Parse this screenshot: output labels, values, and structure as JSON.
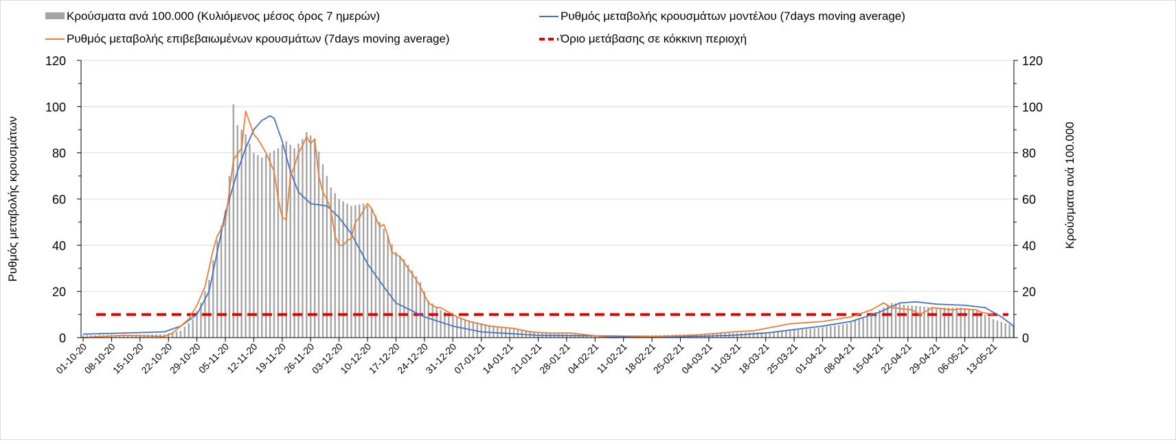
{
  "chart_data": {
    "type": "bar+line",
    "start_date": "01-10-20",
    "legend": [
      {
        "label": "Κρούσματα ανά 100.000 (Κυλιόμενος μέσος όρος 7 ημερών)",
        "kind": "bar",
        "color": "#a5a5a5"
      },
      {
        "label": "Ρυθμός μεταβολής κρουσμάτων μοντέλου (7days moving average)",
        "kind": "line",
        "color": "#4472c4"
      },
      {
        "label": "Ρυθμός μεταβολής επιβεβαιωμένων κρουσμάτων (7days moving average)",
        "kind": "line",
        "color": "#ed7d31"
      },
      {
        "label": "Όριο μετάβασης σε κόκκινη περιοχή",
        "kind": "dashed",
        "color": "#e00000"
      }
    ],
    "legend_position": "top",
    "ylabel_left": "Ρυθμός μεταβολής κρουσμάτων",
    "ylabel_right": "Κρούσματα ανά 100.000",
    "ylim": [
      0,
      120
    ],
    "yticks": [
      "0",
      "20",
      "40",
      "60",
      "80",
      "100",
      "120"
    ],
    "xlim_days": [
      0,
      229
    ],
    "xticks": [
      "01-10-20",
      "08-10-20",
      "15-10-20",
      "22-10-20",
      "29-10-20",
      "05-11-20",
      "12-11-20",
      "19-11-20",
      "26-11-20",
      "03-12-20",
      "10-12-20",
      "17-12-20",
      "24-12-20",
      "31-12-20",
      "07-01-21",
      "14-01-21",
      "21-01-21",
      "28-01-21",
      "04-02-21",
      "11-02-21",
      "18-02-21",
      "25-02-21",
      "04-03-21",
      "11-03-21",
      "18-03-21",
      "25-03-21",
      "01-04-21",
      "08-04-21",
      "15-04-21",
      "22-04-21",
      "29-04-21",
      "06-05-21",
      "13-05-21"
    ],
    "threshold": 10,
    "series_bars_cases_per_100k": [
      [
        0,
        1
      ],
      [
        10,
        1.2
      ],
      [
        20,
        1.5
      ],
      [
        24,
        3
      ],
      [
        27,
        8
      ],
      [
        29,
        15
      ],
      [
        31,
        25
      ],
      [
        33,
        42
      ],
      [
        35,
        55
      ],
      [
        36,
        70
      ],
      [
        37,
        101
      ],
      [
        38,
        92
      ],
      [
        40,
        88
      ],
      [
        42,
        80
      ],
      [
        44,
        78
      ],
      [
        46,
        80
      ],
      [
        48,
        82
      ],
      [
        50,
        85
      ],
      [
        52,
        82
      ],
      [
        54,
        86
      ],
      [
        55,
        89
      ],
      [
        57,
        86
      ],
      [
        59,
        75
      ],
      [
        61,
        65
      ],
      [
        63,
        60
      ],
      [
        66,
        57
      ],
      [
        69,
        58
      ],
      [
        71,
        56
      ],
      [
        73,
        50
      ],
      [
        75,
        44
      ],
      [
        77,
        37
      ],
      [
        79,
        34
      ],
      [
        81,
        29
      ],
      [
        83,
        24
      ],
      [
        85,
        16
      ],
      [
        88,
        12
      ],
      [
        92,
        9
      ],
      [
        96,
        7
      ],
      [
        100,
        5.5
      ],
      [
        106,
        4
      ],
      [
        112,
        2.5
      ],
      [
        120,
        1.5
      ],
      [
        130,
        0.8
      ],
      [
        140,
        1
      ],
      [
        150,
        1.5
      ],
      [
        160,
        2
      ],
      [
        170,
        2.5
      ],
      [
        180,
        4
      ],
      [
        188,
        6
      ],
      [
        194,
        10
      ],
      [
        199,
        15
      ],
      [
        203,
        14
      ],
      [
        210,
        13
      ],
      [
        216,
        13
      ],
      [
        220,
        12
      ],
      [
        224,
        8
      ],
      [
        229,
        5
      ]
    ],
    "series_model": [
      [
        0,
        1.5
      ],
      [
        20,
        2.5
      ],
      [
        24,
        5
      ],
      [
        28,
        10
      ],
      [
        31,
        20
      ],
      [
        35,
        54
      ],
      [
        38,
        72
      ],
      [
        40,
        82
      ],
      [
        42,
        90
      ],
      [
        44,
        94
      ],
      [
        46,
        96
      ],
      [
        47,
        95
      ],
      [
        49,
        85
      ],
      [
        51,
        72
      ],
      [
        53,
        63
      ],
      [
        56,
        58
      ],
      [
        60,
        57
      ],
      [
        63,
        52
      ],
      [
        66,
        45
      ],
      [
        70,
        32
      ],
      [
        74,
        22
      ],
      [
        77,
        15
      ],
      [
        84,
        9
      ],
      [
        91,
        5
      ],
      [
        98,
        2.5
      ],
      [
        112,
        1
      ],
      [
        140,
        0.5
      ],
      [
        150,
        0.5
      ],
      [
        160,
        1
      ],
      [
        168,
        2
      ],
      [
        175,
        3.5
      ],
      [
        182,
        5
      ],
      [
        189,
        7
      ],
      [
        196,
        11
      ],
      [
        201,
        15
      ],
      [
        205,
        15.5
      ],
      [
        210,
        14.5
      ],
      [
        217,
        14
      ],
      [
        222,
        13
      ],
      [
        226,
        9
      ],
      [
        229,
        5
      ]
    ],
    "series_confirmed": [
      [
        0,
        0
      ],
      [
        10,
        1
      ],
      [
        20,
        0.5
      ],
      [
        22,
        2
      ],
      [
        26,
        8
      ],
      [
        28,
        14
      ],
      [
        30,
        22
      ],
      [
        32,
        38
      ],
      [
        33,
        44
      ],
      [
        35,
        50
      ],
      [
        37,
        77
      ],
      [
        39,
        82
      ],
      [
        40,
        98
      ],
      [
        42,
        88
      ],
      [
        43,
        86
      ],
      [
        45,
        80
      ],
      [
        47,
        72
      ],
      [
        48,
        60
      ],
      [
        49,
        52
      ],
      [
        50,
        51
      ],
      [
        51,
        70
      ],
      [
        52,
        74
      ],
      [
        53,
        80
      ],
      [
        54,
        83
      ],
      [
        55,
        87
      ],
      [
        56,
        84
      ],
      [
        57,
        86
      ],
      [
        58,
        70
      ],
      [
        59,
        63
      ],
      [
        60,
        60
      ],
      [
        61,
        55
      ],
      [
        62,
        44
      ],
      [
        63,
        40
      ],
      [
        64,
        40
      ],
      [
        65,
        42
      ],
      [
        66,
        43
      ],
      [
        67,
        50
      ],
      [
        68,
        52
      ],
      [
        70,
        58
      ],
      [
        71,
        56
      ],
      [
        73,
        48
      ],
      [
        74,
        49
      ],
      [
        75,
        44
      ],
      [
        76,
        37
      ],
      [
        78,
        35
      ],
      [
        80,
        30
      ],
      [
        82,
        25
      ],
      [
        83,
        22
      ],
      [
        85,
        15
      ],
      [
        87,
        13
      ],
      [
        88,
        13
      ],
      [
        90,
        11
      ],
      [
        92,
        9
      ],
      [
        95,
        7
      ],
      [
        100,
        5
      ],
      [
        106,
        4
      ],
      [
        110,
        2.5
      ],
      [
        115,
        2
      ],
      [
        120,
        2
      ],
      [
        125,
        1
      ],
      [
        130,
        0
      ],
      [
        140,
        0.5
      ],
      [
        150,
        1
      ],
      [
        160,
        2.5
      ],
      [
        165,
        3
      ],
      [
        174,
        6
      ],
      [
        182,
        7
      ],
      [
        189,
        9
      ],
      [
        194,
        12
      ],
      [
        197,
        15
      ],
      [
        199,
        13
      ],
      [
        204,
        12
      ],
      [
        206,
        10
      ],
      [
        209,
        13
      ],
      [
        214,
        12
      ],
      [
        216,
        12.5
      ],
      [
        220,
        12
      ],
      [
        221,
        11
      ],
      [
        224,
        10
      ]
    ]
  }
}
